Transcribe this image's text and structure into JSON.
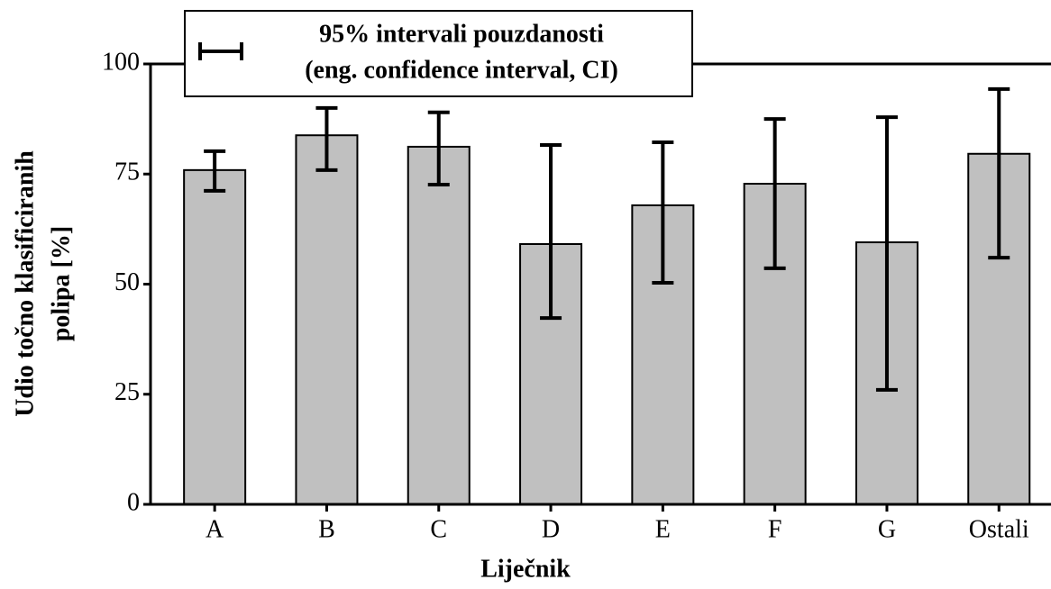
{
  "chart_data": {
    "type": "bar",
    "legend_title": [
      "95% intervali pouzdanosti",
      "(eng. confidence interval, CI)"
    ],
    "xlabel": "Liječnik",
    "ylabel": [
      "Udio točno klasificiranih",
      "polipa [%]"
    ],
    "categories": [
      "A",
      "B",
      "C",
      "D",
      "E",
      "F",
      "G",
      "Ostali"
    ],
    "values": [
      75.9,
      83.8,
      81.2,
      59.1,
      67.9,
      72.8,
      59.5,
      79.6
    ],
    "ci_low": [
      71.2,
      75.9,
      72.6,
      42.3,
      50.3,
      53.6,
      26.0,
      56.0
    ],
    "ci_high": [
      80.2,
      90.0,
      89.0,
      81.6,
      82.2,
      87.5,
      87.9,
      94.3
    ],
    "color": "#c0c0c0",
    "ylim": [
      0,
      100
    ],
    "yticks": [
      0,
      25,
      50,
      75,
      100
    ]
  }
}
